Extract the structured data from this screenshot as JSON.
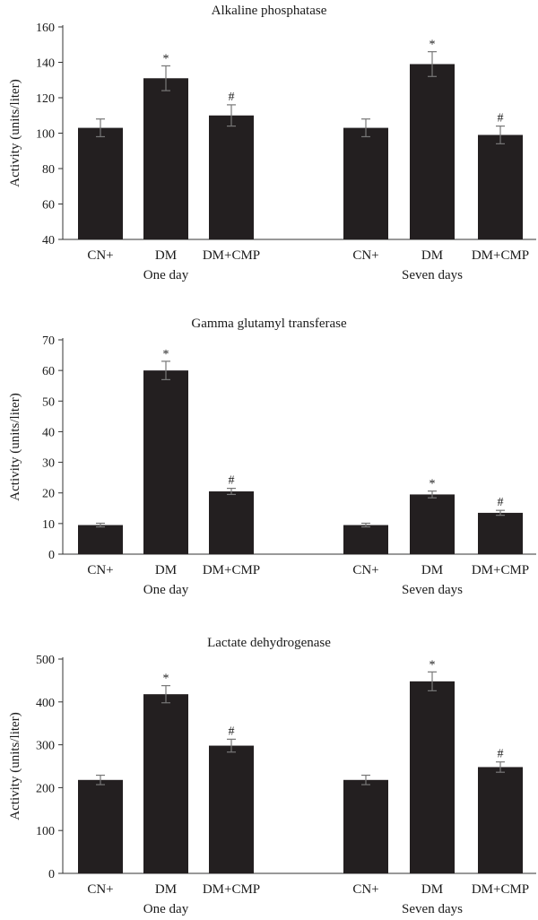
{
  "chart_data": [
    {
      "type": "bar",
      "title": "Alkaline phosphatase",
      "ylabel": "Activity (units/liter)",
      "ylim": [
        40,
        160
      ],
      "yticks": [
        40,
        60,
        80,
        100,
        120,
        140,
        160
      ],
      "groups": [
        {
          "label": "One day",
          "categories": [
            "CN+",
            "DM",
            "DM+CMP"
          ],
          "values": [
            103,
            131,
            110
          ],
          "errors": [
            5,
            7,
            6
          ],
          "markers": [
            "",
            "*",
            "#"
          ]
        },
        {
          "label": "Seven days",
          "categories": [
            "CN+",
            "DM",
            "DM+CMP"
          ],
          "values": [
            103,
            139,
            99
          ],
          "errors": [
            5,
            7,
            5
          ],
          "markers": [
            "",
            "*",
            "#"
          ]
        }
      ],
      "bar_color": "#231f20"
    },
    {
      "type": "bar",
      "title": "Gamma glutamyl transferase",
      "ylabel": "Activity (units/liter)",
      "ylim": [
        0,
        70
      ],
      "yticks": [
        0,
        10,
        20,
        30,
        40,
        50,
        60,
        70
      ],
      "groups": [
        {
          "label": "One day",
          "categories": [
            "CN+",
            "DM",
            "DM+CMP"
          ],
          "values": [
            9.5,
            60,
            20.5
          ],
          "errors": [
            0.6,
            3,
            1
          ],
          "markers": [
            "",
            "*",
            "#"
          ]
        },
        {
          "label": "Seven days",
          "categories": [
            "CN+",
            "DM",
            "DM+CMP"
          ],
          "values": [
            9.5,
            19.5,
            13.5
          ],
          "errors": [
            0.6,
            1.1,
            0.8
          ],
          "markers": [
            "",
            "*",
            "#"
          ]
        }
      ],
      "bar_color": "#231f20"
    },
    {
      "type": "bar",
      "title": "Lactate dehydrogenase",
      "ylabel": "Activity (units/liter)",
      "ylim": [
        0,
        500
      ],
      "yticks": [
        0,
        100,
        200,
        300,
        400,
        500
      ],
      "groups": [
        {
          "label": "One day",
          "categories": [
            "CN+",
            "DM",
            "DM+CMP"
          ],
          "values": [
            218,
            418,
            298
          ],
          "errors": [
            11,
            20,
            15
          ],
          "markers": [
            "",
            "*",
            "#"
          ]
        },
        {
          "label": "Seven days",
          "categories": [
            "CN+",
            "DM",
            "DM+CMP"
          ],
          "values": [
            218,
            448,
            248
          ],
          "errors": [
            11,
            22,
            12
          ],
          "markers": [
            "",
            "*",
            "#"
          ]
        }
      ],
      "bar_color": "#231f20"
    }
  ]
}
